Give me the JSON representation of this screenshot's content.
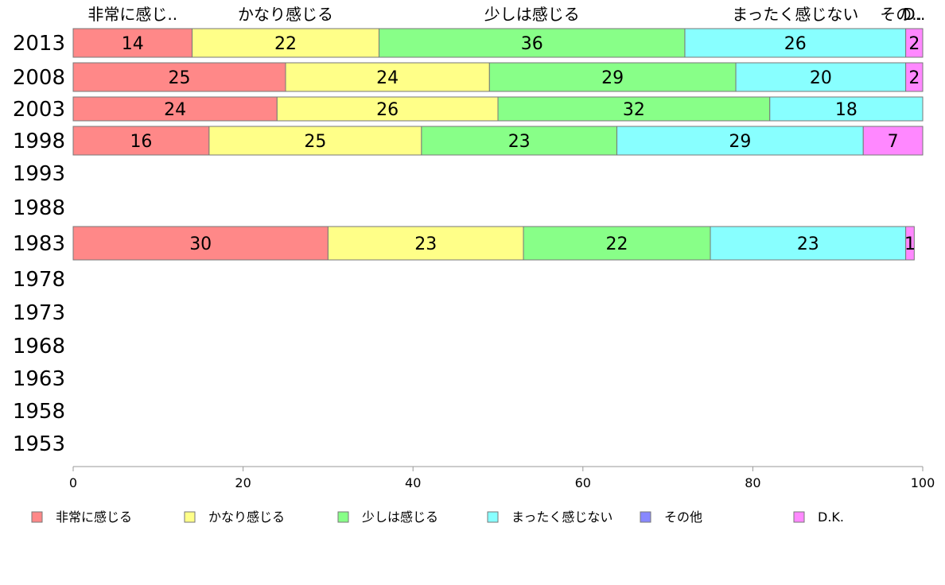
{
  "chart_data": {
    "type": "bar",
    "orientation": "horizontal",
    "stacked": true,
    "categories": [
      "2013",
      "2008",
      "2003",
      "1998",
      "1993",
      "1988",
      "1983",
      "1978",
      "1973",
      "1968",
      "1963",
      "1958",
      "1953"
    ],
    "series": [
      {
        "name": "非常に感じる",
        "short_label": "非常に感じ..",
        "color": "#ff8888",
        "values": [
          14,
          25,
          24,
          16,
          null,
          null,
          30,
          null,
          null,
          null,
          null,
          null,
          null
        ]
      },
      {
        "name": "かなり感じる",
        "short_label": "かなり感じる",
        "color": "#ffff88",
        "values": [
          22,
          24,
          26,
          25,
          null,
          null,
          23,
          null,
          null,
          null,
          null,
          null,
          null
        ]
      },
      {
        "name": "少しは感じる",
        "short_label": "少しは感じる",
        "color": "#88ff88",
        "values": [
          36,
          29,
          32,
          23,
          null,
          null,
          22,
          null,
          null,
          null,
          null,
          null,
          null
        ]
      },
      {
        "name": "まったく感じない",
        "short_label": "まったく感じない",
        "color": "#88ffff",
        "values": [
          26,
          20,
          18,
          29,
          null,
          null,
          23,
          null,
          null,
          null,
          null,
          null,
          null
        ]
      },
      {
        "name": "その他",
        "short_label": "その..",
        "color": "#8888ff",
        "values": [
          0,
          0,
          0,
          0,
          null,
          null,
          0,
          null,
          null,
          null,
          null,
          null,
          null
        ]
      },
      {
        "name": "D.K.",
        "short_label": "D..",
        "color": "#ff88ff",
        "values": [
          2,
          2,
          0,
          7,
          null,
          null,
          1,
          null,
          null,
          null,
          null,
          null,
          null
        ]
      }
    ],
    "xlim": [
      0,
      100
    ],
    "xticks": [
      0,
      20,
      40,
      60,
      80,
      100
    ],
    "legend_position": "bottom",
    "grid": false
  }
}
